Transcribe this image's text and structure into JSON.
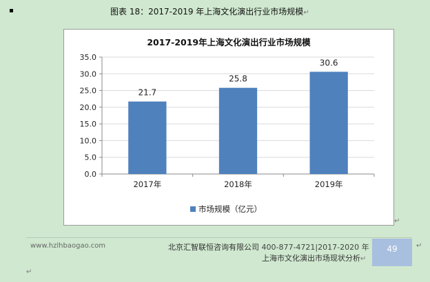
{
  "caption": "图表 18：2017-2019 年上海文化演出行业市场规模",
  "paragraph_mark": "↵",
  "footer": {
    "site": "www.hzlhbaogao.com",
    "company": "北京汇智联恒咨询有限公司",
    "tel": "400-877-4721|2017-2020 年",
    "report_title": "上海市文化演出市场现状分析",
    "page_number": "49"
  },
  "colors": {
    "bar": "#4f81bd",
    "background": "#cfe8cf",
    "grid": "#d9d9d9"
  },
  "chart_data": {
    "type": "bar",
    "title": "2017-2019年上海文化演出行业市场规模",
    "categories": [
      "2017年",
      "2018年",
      "2019年"
    ],
    "series": [
      {
        "name": "市场规模（亿元）",
        "values": [
          21.7,
          25.8,
          30.6
        ]
      }
    ],
    "data_labels": [
      "21.7",
      "25.8",
      "30.6"
    ],
    "yticks": [
      "0.0",
      "5.0",
      "10.0",
      "15.0",
      "20.0",
      "25.0",
      "30.0",
      "35.0"
    ],
    "ylim": [
      0,
      35
    ],
    "grid": true,
    "legend": "bottom"
  }
}
